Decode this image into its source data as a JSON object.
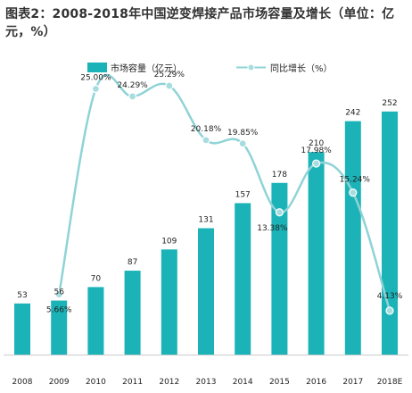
{
  "title": "图表2：2008-2018年中国逆变焊接产品市场容量及增长（单位：亿元，%）",
  "colors": {
    "bar": "#1bb3b7",
    "line": "#8fd3d6",
    "marker": "#a8dde0",
    "marker_edge": "#ffffff",
    "axis": "#cccccc"
  },
  "chart_data": {
    "type": "bar+line",
    "categories": [
      "2008",
      "2009",
      "2010",
      "2011",
      "2012",
      "2013",
      "2014",
      "2015",
      "2016",
      "2017",
      "2018E"
    ],
    "series": [
      {
        "name": "市场容量（亿元）",
        "type": "bar",
        "values": [
          53,
          56,
          70,
          87,
          109,
          131,
          157,
          178,
          210,
          242,
          252
        ]
      },
      {
        "name": "同比增长（%）",
        "type": "line",
        "values": [
          null,
          5.66,
          25.0,
          24.29,
          25.29,
          20.18,
          19.85,
          13.38,
          17.98,
          15.24,
          4.13
        ],
        "labels": [
          "",
          "5.66%",
          "25.00%",
          "24.29%",
          "25.29%",
          "20.18%",
          "19.85%",
          "13.38%",
          "17.98%",
          "15.24%",
          "4.13%"
        ]
      }
    ],
    "ylim_bar": [
      0,
      270
    ],
    "ylim_line": [
      0,
      30
    ],
    "legend": "top"
  }
}
